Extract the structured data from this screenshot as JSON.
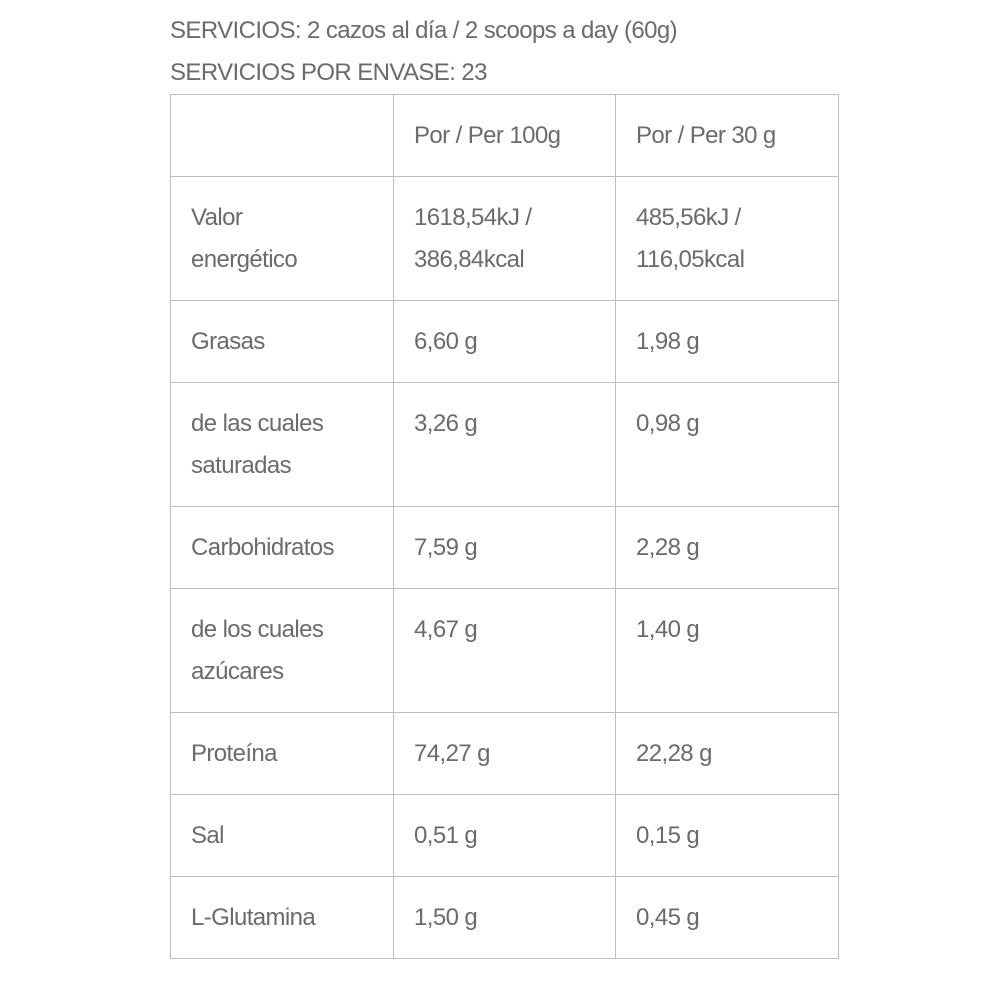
{
  "servings": "SERVICIOS: 2 cazos al día / 2 scoops a day (60g)",
  "servings_per_container": "SERVICIOS POR ENVASE: 23",
  "table": {
    "headers": [
      "",
      "Por / Per 100g",
      "Por / Per 30 g"
    ],
    "rows": [
      [
        "Valor\nenergético",
        "1618,54kJ /\n386,84kcal",
        "485,56kJ /\n116,05kcal"
      ],
      [
        "Grasas",
        "6,60 g",
        "1,98 g"
      ],
      [
        "de las cuales\nsaturadas",
        "3,26 g",
        "0,98 g"
      ],
      [
        "Carbohidratos",
        "7,59 g",
        "2,28 g"
      ],
      [
        "de los cuales\nazúcares",
        "4,67 g",
        "1,40 g"
      ],
      [
        "Proteína",
        "74,27 g",
        "22,28 g"
      ],
      [
        "Sal",
        "0,51 g",
        "0,15 g"
      ],
      [
        "L-Glutamina",
        "1,50 g",
        "0,45 g"
      ]
    ]
  }
}
